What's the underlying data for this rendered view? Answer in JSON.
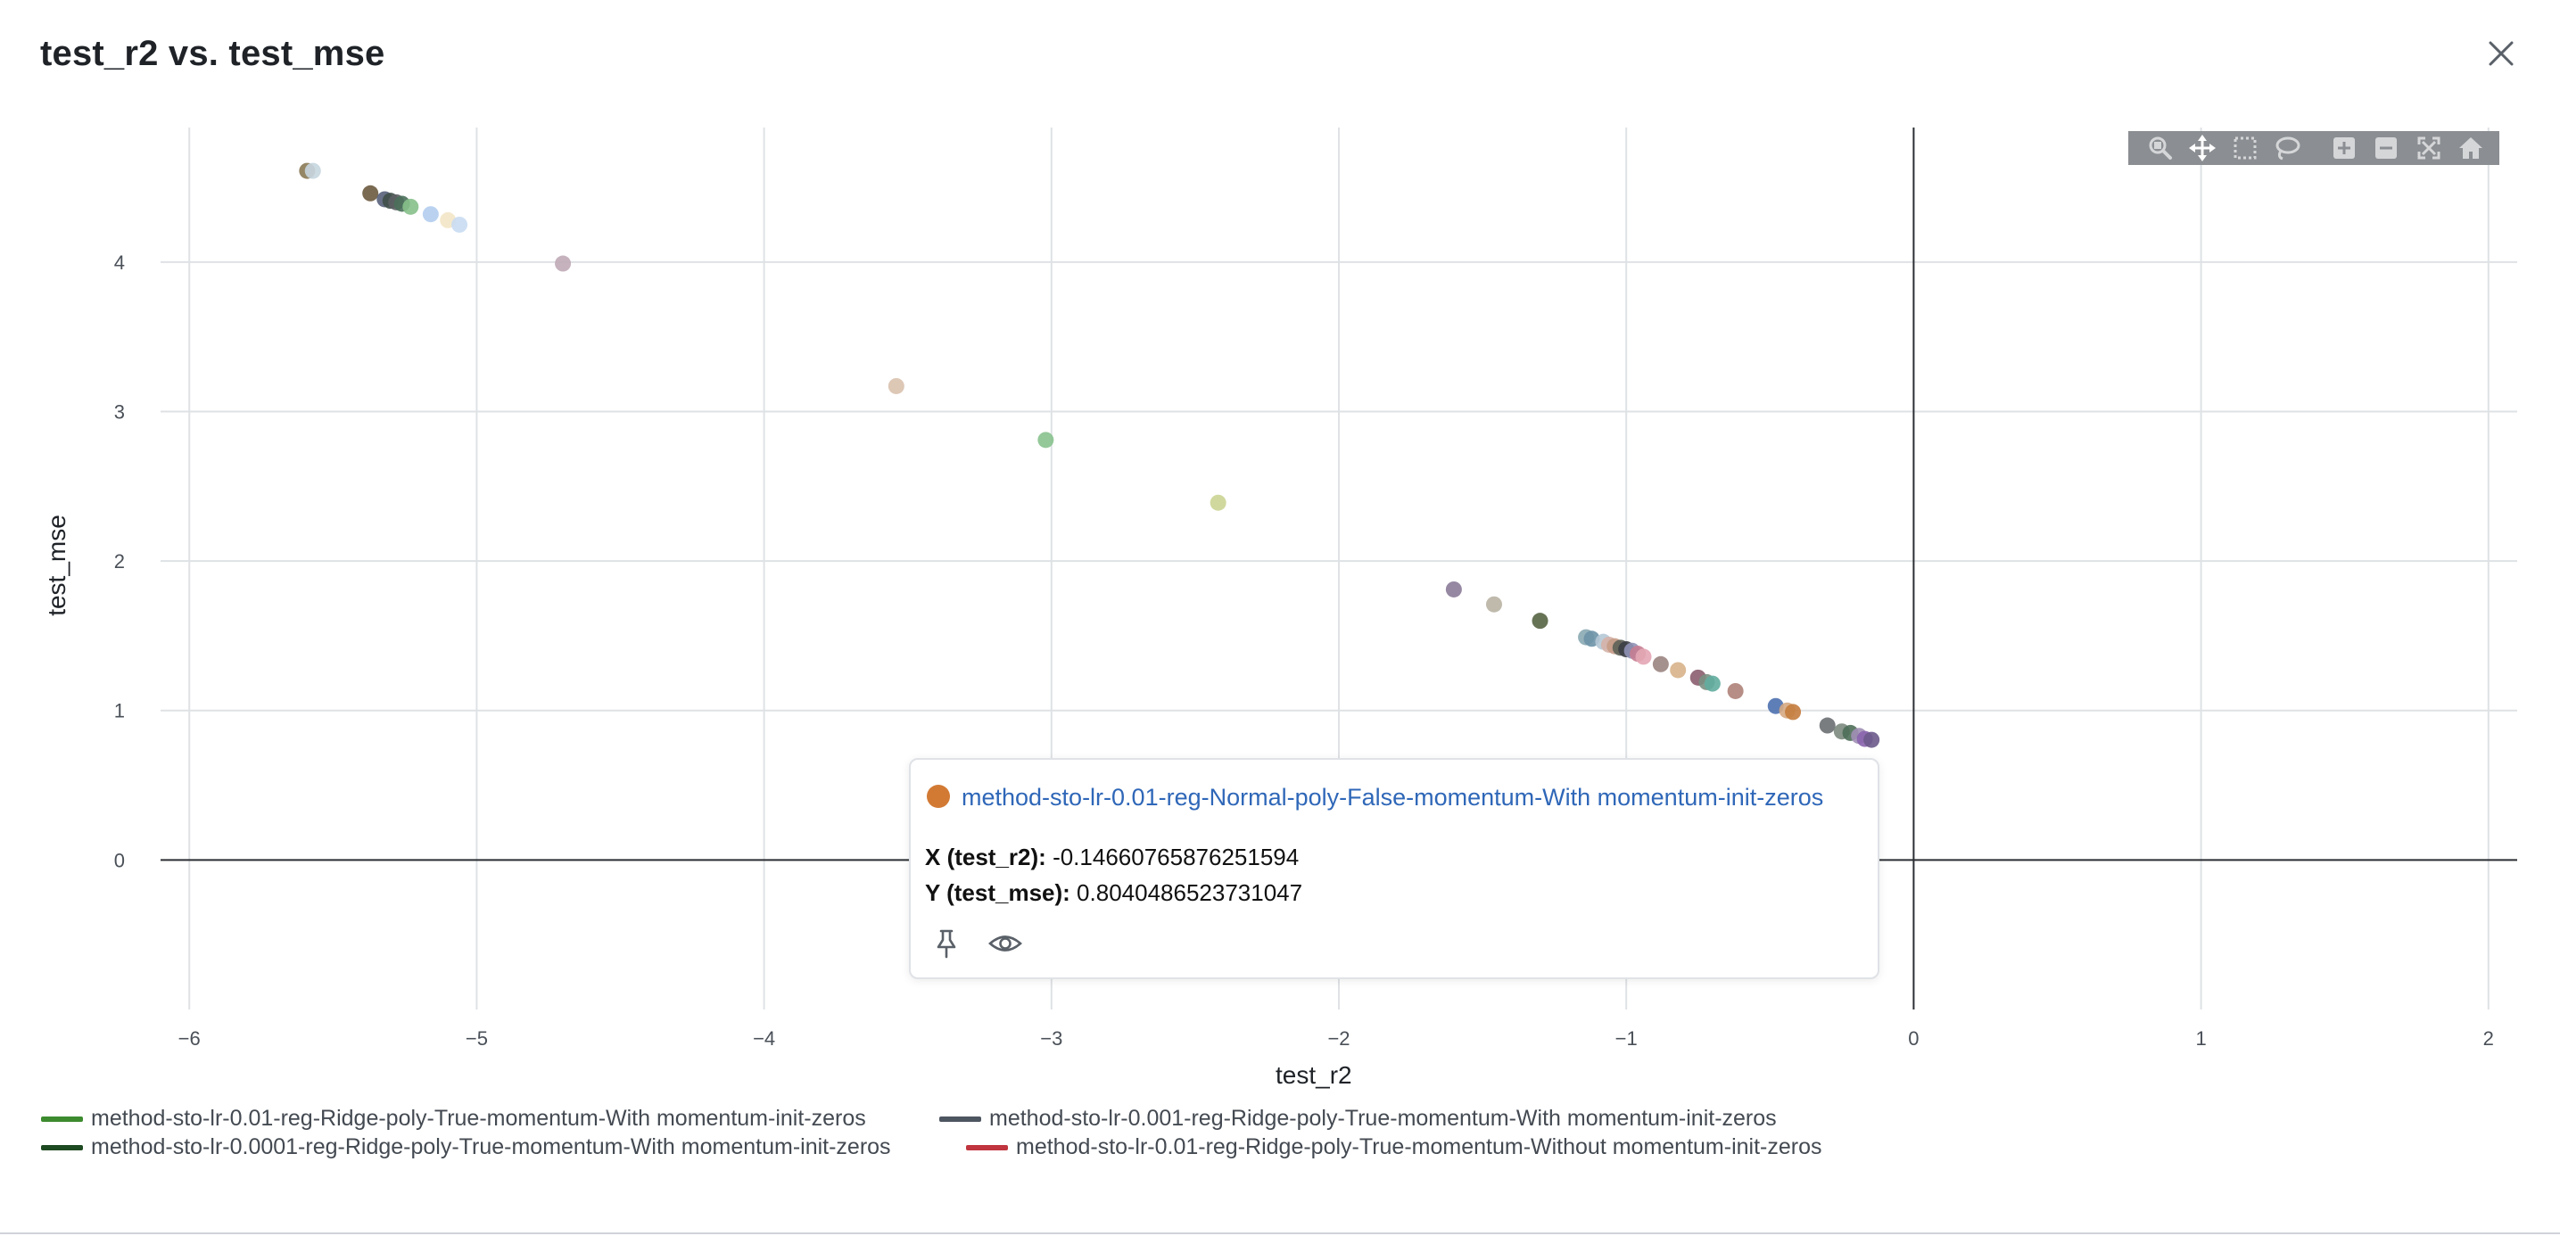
{
  "modal": {
    "title": "test_r2 vs. test_mse",
    "close_icon": "close-icon"
  },
  "modebar": {
    "buttons": [
      "zoom-icon",
      "pan-icon",
      "box-select-icon",
      "lasso-select-icon",
      "zoom-in-icon",
      "zoom-out-icon",
      "autoscale-icon",
      "reset-axes-icon"
    ],
    "background": "#8b8e92"
  },
  "chart_data": {
    "type": "scatter",
    "xlabel": "test_r2",
    "ylabel": "test_mse",
    "xlim": [
      -6.1,
      2.1
    ],
    "ylim": [
      -1.0,
      4.9
    ],
    "x_ticks": [
      -6,
      -5,
      -4,
      -3,
      -2,
      -1,
      0,
      1,
      2
    ],
    "x_tick_labels": [
      "−6",
      "−5",
      "−4",
      "−3",
      "−2",
      "−1",
      "0",
      "1",
      "2"
    ],
    "y_ticks": [
      0,
      1,
      2,
      3,
      4
    ],
    "y_tick_labels": [
      "0",
      "1",
      "2",
      "3",
      "4"
    ],
    "grid": true,
    "zero_lines": true,
    "points": [
      {
        "x": -5.59,
        "y": 4.61,
        "color": "#8a7a55"
      },
      {
        "x": -5.57,
        "y": 4.61,
        "color": "#c6d6df"
      },
      {
        "x": -5.37,
        "y": 4.46,
        "color": "#6b5a3e"
      },
      {
        "x": -5.32,
        "y": 4.42,
        "color": "#56617a"
      },
      {
        "x": -5.3,
        "y": 4.41,
        "color": "#3f4f48"
      },
      {
        "x": -5.28,
        "y": 4.4,
        "color": "#5c5f63"
      },
      {
        "x": -5.26,
        "y": 4.39,
        "color": "#4a6f5a"
      },
      {
        "x": -5.23,
        "y": 4.37,
        "color": "#86c08a"
      },
      {
        "x": -5.16,
        "y": 4.32,
        "color": "#b3cdee"
      },
      {
        "x": -5.1,
        "y": 4.28,
        "color": "#f3e6c6"
      },
      {
        "x": -5.06,
        "y": 4.25,
        "color": "#c9dcf2"
      },
      {
        "x": -4.7,
        "y": 3.99,
        "color": "#bfaab6"
      },
      {
        "x": -3.54,
        "y": 3.17,
        "color": "#d9c1ad"
      },
      {
        "x": -3.02,
        "y": 2.81,
        "color": "#88c28e"
      },
      {
        "x": -2.42,
        "y": 2.39,
        "color": "#ccd494"
      },
      {
        "x": -1.6,
        "y": 1.81,
        "color": "#8b7b98"
      },
      {
        "x": -1.46,
        "y": 1.71,
        "color": "#b8b2a3"
      },
      {
        "x": -1.3,
        "y": 1.6,
        "color": "#566443"
      },
      {
        "x": -1.14,
        "y": 1.49,
        "color": "#8aa9b2"
      },
      {
        "x": -1.12,
        "y": 1.48,
        "color": "#6d92a7"
      },
      {
        "x": -1.08,
        "y": 1.46,
        "color": "#b5c8d6"
      },
      {
        "x": -1.06,
        "y": 1.44,
        "color": "#d5b2a9"
      },
      {
        "x": -1.04,
        "y": 1.43,
        "color": "#c59c87"
      },
      {
        "x": -1.02,
        "y": 1.42,
        "color": "#5d6157"
      },
      {
        "x": -1.0,
        "y": 1.41,
        "color": "#3b3e45"
      },
      {
        "x": -0.98,
        "y": 1.4,
        "color": "#9092b6"
      },
      {
        "x": -0.96,
        "y": 1.38,
        "color": "#c77d92"
      },
      {
        "x": -0.94,
        "y": 1.36,
        "color": "#e3a6b4"
      },
      {
        "x": -0.88,
        "y": 1.31,
        "color": "#9a8480"
      },
      {
        "x": -0.82,
        "y": 1.27,
        "color": "#d7b28a"
      },
      {
        "x": -0.75,
        "y": 1.22,
        "color": "#8a5d6e"
      },
      {
        "x": -0.72,
        "y": 1.19,
        "color": "#7a8f82"
      },
      {
        "x": -0.7,
        "y": 1.18,
        "color": "#62ad9e"
      },
      {
        "x": -0.62,
        "y": 1.13,
        "color": "#ae8278"
      },
      {
        "x": -0.48,
        "y": 1.03,
        "color": "#4d70af"
      },
      {
        "x": -0.44,
        "y": 1.0,
        "color": "#d6aa83"
      },
      {
        "x": -0.42,
        "y": 0.99,
        "color": "#c47c3d"
      },
      {
        "x": -0.3,
        "y": 0.9,
        "color": "#6c6f72"
      },
      {
        "x": -0.25,
        "y": 0.86,
        "color": "#7c8a7e"
      },
      {
        "x": -0.22,
        "y": 0.85,
        "color": "#4e6e58"
      },
      {
        "x": -0.19,
        "y": 0.83,
        "color": "#a18fb5"
      },
      {
        "x": -0.17,
        "y": 0.81,
        "color": "#8a64ad"
      },
      {
        "x": -0.1466,
        "y": 0.804,
        "color": "#6c5a8a"
      }
    ]
  },
  "tooltip": {
    "series_name": "method-sto-lr-0.01-reg-Normal-poly-False-momentum-With momentum-init-zeros",
    "dot_color": "#d27a34",
    "x_label": "X (test_r2):",
    "x_value": "-0.14660765876251594",
    "y_label": "Y (test_mse):",
    "y_value": "0.8040486523731047",
    "pin_icon": "pin-icon",
    "eye_icon": "eye-icon"
  },
  "legend": {
    "items": [
      {
        "label": "method-sto-lr-0.01-reg-Ridge-poly-True-momentum-With momentum-init-zeros",
        "color": "#3d8b2f"
      },
      {
        "label": "method-sto-lr-0.001-reg-Ridge-poly-True-momentum-With momentum-init-zeros",
        "color": "#4d5560"
      },
      {
        "label": "method-sto-lr-0.0001-reg-Ridge-poly-True-momentum-With momentum-init-zeros",
        "color": "#1e4a22"
      },
      {
        "label": "method-sto-lr-0.01-reg-Ridge-poly-True-momentum-Without momentum-init-zeros",
        "color": "#c0353f"
      }
    ]
  }
}
